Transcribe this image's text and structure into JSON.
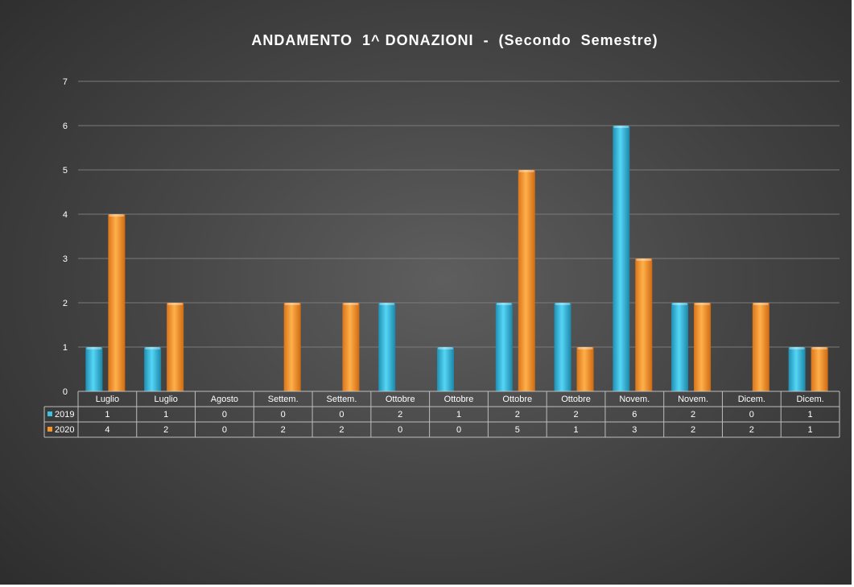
{
  "chart_data": {
    "type": "bar",
    "title": "ANDAMENTO  1^ DONAZIONI  -  (Secondo  Semestre)",
    "categories": [
      "Luglio",
      "Luglio",
      "Agosto",
      "Settem.",
      "Settem.",
      "Ottobre",
      "Ottobre",
      "Ottobre",
      "Ottobre",
      "Novem.",
      "Novem.",
      "Dicem.",
      "Dicem."
    ],
    "series": [
      {
        "name": "2019",
        "color": "#3cc1e6",
        "values": [
          1,
          1,
          0,
          0,
          0,
          2,
          1,
          2,
          2,
          6,
          2,
          0,
          1
        ]
      },
      {
        "name": "2020",
        "color": "#f5962a",
        "values": [
          4,
          2,
          0,
          2,
          2,
          0,
          0,
          5,
          1,
          3,
          2,
          2,
          1
        ]
      }
    ],
    "yticks": [
      "0",
      "1",
      "2",
      "3",
      "4",
      "5",
      "6",
      "7"
    ],
    "ylim": [
      0,
      7
    ],
    "grid": true,
    "data_table": true
  }
}
